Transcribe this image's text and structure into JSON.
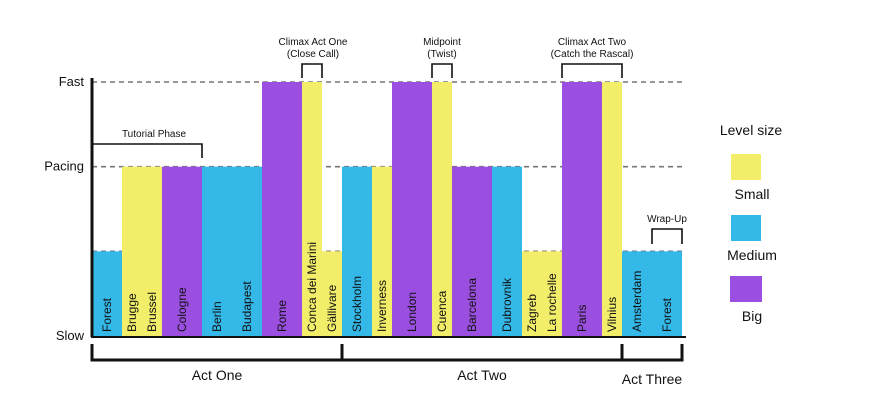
{
  "chart_data": {
    "type": "bar",
    "y_axis": {
      "ticks": [
        {
          "label": "Fast",
          "value": 3
        },
        {
          "label": "Pacing",
          "value": 2
        },
        {
          "label": "Slow",
          "value": 0
        }
      ],
      "ylim": [
        0,
        3
      ],
      "gridlines": [
        1,
        2,
        3
      ]
    },
    "legend": {
      "title": "Level size",
      "placement": "right",
      "items": [
        {
          "label": "Small",
          "color": "#f2ee6a"
        },
        {
          "label": "Medium",
          "color": "#33b8e8"
        },
        {
          "label": "Big",
          "color": "#9b4fe0"
        }
      ]
    },
    "levels": [
      {
        "name": "Forest",
        "size": "Medium",
        "pace": 1
      },
      {
        "name": "Brugge",
        "size": "Small",
        "pace": 2
      },
      {
        "name": "Brussel",
        "size": "Small",
        "pace": 2
      },
      {
        "name": "Cologne",
        "size": "Big",
        "pace": 2
      },
      {
        "name": "Berlin",
        "size": "Medium",
        "pace": 2
      },
      {
        "name": "Budapest",
        "size": "Medium",
        "pace": 2
      },
      {
        "name": "Rome",
        "size": "Big",
        "pace": 3
      },
      {
        "name": "Conca dei Marini",
        "size": "Small",
        "pace": 3
      },
      {
        "name": "Gällivare",
        "size": "Small",
        "pace": 1
      },
      {
        "name": "Stockholm",
        "size": "Medium",
        "pace": 2
      },
      {
        "name": "Inverness",
        "size": "Small",
        "pace": 2
      },
      {
        "name": "London",
        "size": "Big",
        "pace": 3
      },
      {
        "name": "Cuenca",
        "size": "Small",
        "pace": 3
      },
      {
        "name": "Barcelona",
        "size": "Big",
        "pace": 2
      },
      {
        "name": "Dubrovnik",
        "size": "Medium",
        "pace": 2
      },
      {
        "name": "Zagreb",
        "size": "Small",
        "pace": 1
      },
      {
        "name": "La rochelle",
        "size": "Small",
        "pace": 1
      },
      {
        "name": "Paris",
        "size": "Big",
        "pace": 3
      },
      {
        "name": "Vilnius",
        "size": "Small",
        "pace": 3
      },
      {
        "name": "Amsterdam",
        "size": "Medium",
        "pace": 1
      },
      {
        "name": "Forest",
        "size": "Medium",
        "pace": 1
      }
    ],
    "annotations": [
      {
        "lines": [
          "Tutorial Phase"
        ],
        "from": "Forest",
        "to": "Cologne"
      },
      {
        "lines": [
          "Climax Act One",
          "(Close Call)"
        ],
        "from": "Conca dei Marini",
        "to": "Conca dei Marini"
      },
      {
        "lines": [
          "Midpoint",
          "(Twist)"
        ],
        "from": "Cuenca",
        "to": "Cuenca"
      },
      {
        "lines": [
          "Climax Act Two",
          "(Catch the Rascal)"
        ],
        "from": "Paris",
        "to": "Vilnius"
      },
      {
        "lines": [
          "Wrap-Up"
        ],
        "from": "Forest",
        "to": "Forest"
      }
    ],
    "acts": [
      {
        "label": "Act One",
        "from": "Forest",
        "to": "Gällivare"
      },
      {
        "label": "Act Two",
        "from": "Stockholm",
        "to": "Vilnius"
      },
      {
        "label": "Act Three",
        "from": "Amsterdam",
        "to": "Forest"
      }
    ]
  }
}
